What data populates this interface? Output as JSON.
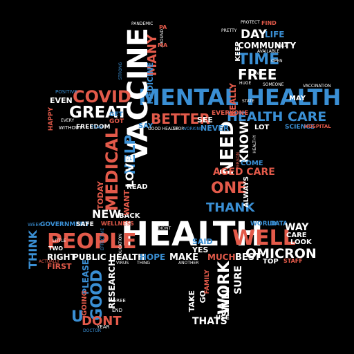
{
  "colors": {
    "background": "#000000",
    "red": "#e35a4a",
    "blue": "#3a8fd4",
    "white": "#ffffff"
  },
  "words": {
    "health_big": "HEALTH",
    "mental_health": "MENTAL HEALTH",
    "people": "PEOPLE",
    "vaccine": "VACCINE",
    "covid": "COVID",
    "great": "GREAT",
    "medical": "MEDICAL",
    "well": "WELL",
    "omicron": "OMICRON",
    "health_care": "HEALTH CARE",
    "need": "NEED",
    "know": "KNOW",
    "time": "TIME",
    "free": "FREE",
    "day": "DAY",
    "life": "LIFE",
    "community": "COMMUNITY",
    "one": "ONE",
    "thank": "THANK",
    "better": "BETTER",
    "help": "HELP",
    "love": "LOVE",
    "many": "MANY",
    "medicine": "MEDICINE",
    "public_health": "PUBLIC HEALTH",
    "hope": "HOPE",
    "make": "MAKE",
    "much": "MUCH",
    "best": "BEST",
    "work": "WORK",
    "sure": "SURE",
    "still": "STILL",
    "new": "NEW",
    "good": "GOOD",
    "research": "RESEARCH",
    "dont": "DONT",
    "u": "U",
    "think": "THINK",
    "right": "RIGHT",
    "first": "FIRST",
    "aged_care": "AGED CARE",
    "always": "ALWAYS",
    "come": "COME",
    "read": "READ",
    "back": "BACK",
    "say": "SAY",
    "see": "SEE",
    "never": "NEVER",
    "everyone": "EVERYONE",
    "really": "REALLY",
    "keep": "KEEP",
    "may": "MAY",
    "even": "EVEN",
    "happy": "HAPPY",
    "freedom": "FREEDOM",
    "without": "WITHOUT",
    "science": "SCIENCE",
    "hospital": "HOSPITAL",
    "lot": "LOT",
    "government": "GOVERNMENT",
    "safe": "SAFE",
    "wellness": "WELLNESS",
    "week": "WEEK",
    "world": "WORLD",
    "data": "DATA",
    "way": "WAY",
    "care": "CARE",
    "look": "LOOK",
    "top": "TOP",
    "staff": "STAFF",
    "thats": "THATS",
    "use": "USE",
    "take": "TAKE",
    "go": "GO",
    "yes": "YES",
    "said": "SAID",
    "family": "FAMILY",
    "today": "TODAY",
    "want": "WANT",
    "positive": "POSITIVE",
    "get": "GET",
    "got": "GOT",
    "please": "PLEASE",
    "going": "GOING",
    "two": "TWO",
    "agree": "AGREE",
    "end": "END",
    "year": "YEAR",
    "actually": "ACTUALLY",
    "doctor": "DOCTOR",
    "pandemic": "PANDEMIC",
    "protect": "PROTECT",
    "find": "FIND",
    "able": "ABLE",
    "team": "TEAM",
    "someone": "SOMEONE",
    "open": "OPEN",
    "vaccination": "VACCINATION",
    "healthy": "HEALTHY",
    "person": "PERSON",
    "effective": "EFFECTIVE",
    "education": "EDUCATION",
    "virus": "VIRUS",
    "thing": "THING",
    "didnt": "DIDNT",
    "another": "ANOTHER",
    "good_health": "GOOD HEALTH",
    "stop": "STOP",
    "working": "WORKING",
    "around": "AROUND",
    "strong": "STRONG",
    "little": "LITTLE",
    "every": "EVERY",
    "live": "LIVE",
    "huge": "HUGE",
    "available": "AVAILABLE",
    "state": "STATE",
    "pa": "PA",
    "ma": "MA",
    "pretty": "PRETTY"
  }
}
